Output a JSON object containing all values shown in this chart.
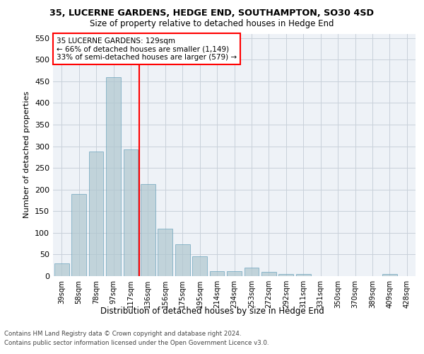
{
  "title_line1": "35, LUCERNE GARDENS, HEDGE END, SOUTHAMPTON, SO30 4SD",
  "title_line2": "Size of property relative to detached houses in Hedge End",
  "xlabel": "Distribution of detached houses by size in Hedge End",
  "ylabel": "Number of detached properties",
  "categories": [
    "39sqm",
    "58sqm",
    "78sqm",
    "97sqm",
    "117sqm",
    "136sqm",
    "156sqm",
    "175sqm",
    "195sqm",
    "214sqm",
    "234sqm",
    "253sqm",
    "272sqm",
    "292sqm",
    "311sqm",
    "331sqm",
    "350sqm",
    "370sqm",
    "389sqm",
    "409sqm",
    "428sqm"
  ],
  "values": [
    30,
    190,
    287,
    460,
    292,
    213,
    109,
    73,
    46,
    12,
    12,
    20,
    9,
    5,
    5,
    0,
    0,
    0,
    0,
    5,
    0
  ],
  "bar_color": "#aec6cf",
  "bar_edge_color": "#5a9ab5",
  "bar_alpha": 0.7,
  "vline_x": 4.5,
  "vline_color": "red",
  "annotation_text": "35 LUCERNE GARDENS: 129sqm\n← 66% of detached houses are smaller (1,149)\n33% of semi-detached houses are larger (579) →",
  "annotation_box_color": "white",
  "annotation_box_edge_color": "red",
  "ylim": [
    0,
    560
  ],
  "yticks": [
    0,
    50,
    100,
    150,
    200,
    250,
    300,
    350,
    400,
    450,
    500,
    550
  ],
  "footer_line1": "Contains HM Land Registry data © Crown copyright and database right 2024.",
  "footer_line2": "Contains public sector information licensed under the Open Government Licence v3.0.",
  "bg_color": "#eef2f7",
  "grid_color": "#c8d0da"
}
